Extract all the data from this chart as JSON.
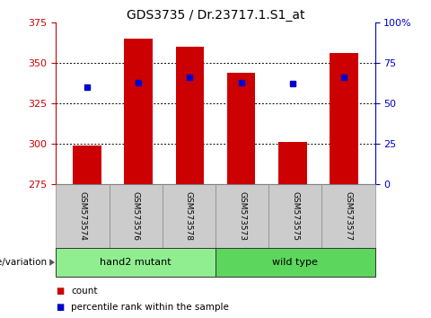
{
  "title": "GDS3735 / Dr.23717.1.S1_at",
  "samples": [
    "GSM573574",
    "GSM573576",
    "GSM573578",
    "GSM573573",
    "GSM573575",
    "GSM573577"
  ],
  "bar_values": [
    299,
    365,
    360,
    344,
    301,
    356
  ],
  "bar_bottom": 275,
  "percentile_values": [
    335,
    338,
    341,
    338,
    337,
    341
  ],
  "bar_color": "#cc0000",
  "percentile_color": "#0000cc",
  "ylim_left": [
    275,
    375
  ],
  "ylim_right": [
    0,
    100
  ],
  "yticks_left": [
    275,
    300,
    325,
    350,
    375
  ],
  "yticks_right": [
    0,
    25,
    50,
    75,
    100
  ],
  "ytick_labels_right": [
    "0",
    "25",
    "50",
    "75",
    "100%"
  ],
  "groups": [
    {
      "label": "hand2 mutant",
      "start": 0,
      "end": 3,
      "color": "#90ee90"
    },
    {
      "label": "wild type",
      "start": 3,
      "end": 6,
      "color": "#5cd65c"
    }
  ],
  "group_label": "genotype/variation",
  "legend_count_label": "count",
  "legend_percentile_label": "percentile rank within the sample",
  "bar_width": 0.55,
  "bg_color": "#ffffff",
  "tick_label_color_left": "#cc0000",
  "tick_label_color_right": "#0000cc",
  "grid_color": "#000000",
  "sample_bg_color": "#cccccc",
  "grid_yticks": [
    300,
    325,
    350
  ]
}
